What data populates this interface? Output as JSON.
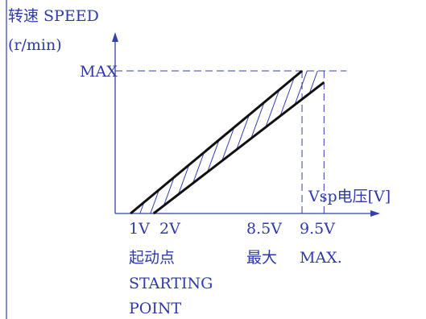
{
  "chart_data": {
    "type": "line",
    "title": "",
    "ylabel_line1": "转速 SPEED",
    "ylabel_line2": "(r/min)",
    "xlabel": "Vsp电压[V]",
    "ymax_label": "MAX",
    "xlim": [
      0,
      10.2
    ],
    "ylim": [
      0,
      1.0
    ],
    "bands": [
      {
        "name": "",
        "points": [
          {
            "x": 0.7,
            "y": 0
          },
          {
            "x": 8.5,
            "y": 1.0
          }
        ]
      },
      {
        "name": "",
        "points": [
          {
            "x": 1.75,
            "y": 0
          },
          {
            "x": 9.5,
            "y": 0.92
          }
        ]
      }
    ],
    "reference_lines": [
      {
        "axis": "y",
        "value": 1.0,
        "style": "dashed"
      },
      {
        "axis": "x",
        "value": 8.5,
        "style": "dashed"
      },
      {
        "axis": "x",
        "value": 9.5,
        "style": "dashed"
      }
    ],
    "tick_labels": [
      {
        "x": 1,
        "label": "1V"
      },
      {
        "x": 2,
        "label": "2V"
      },
      {
        "x": 8.5,
        "label": "8.5V"
      },
      {
        "x": 9.5,
        "label": "9.5V"
      }
    ],
    "annotations": {
      "start_cn": "起动点",
      "start_en_1": "STARTING",
      "start_en_2": "POINT",
      "max_cn": "最大",
      "max_en": "MAX."
    },
    "grid": false,
    "hatch": true,
    "colors": {
      "axis": "#3340b0",
      "curve": "#111111",
      "text": "#2d3aa8"
    }
  }
}
